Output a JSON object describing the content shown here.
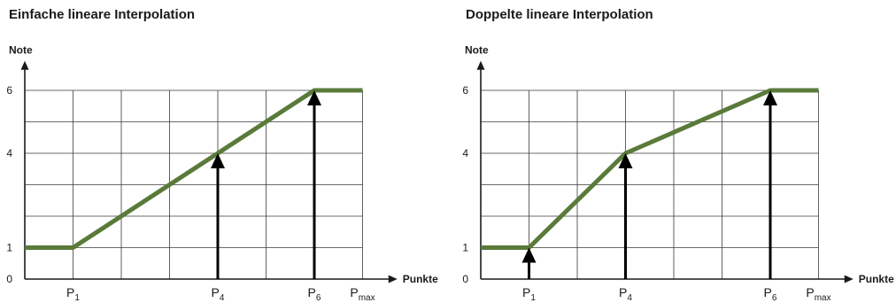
{
  "chart_data": [
    {
      "type": "line",
      "title": "Einfache lineare Interpolation",
      "ylabel": "Note",
      "xlabel": "Punkte",
      "y_ticks": [
        "0",
        "1",
        "4",
        "6"
      ],
      "x_ticks": [
        {
          "base": "P",
          "sub": "1",
          "x": 1
        },
        {
          "base": "P",
          "sub": "4",
          "x": 4
        },
        {
          "base": "P",
          "sub": "6",
          "x": 6
        },
        {
          "base": "P",
          "sub": "max",
          "x": 7
        }
      ],
      "xlim": [
        0,
        7.5
      ],
      "ylim": [
        0,
        6.6
      ],
      "grid": true,
      "grid_x_step": 1,
      "grid_y_step": 1,
      "line_color": "#5a7a3a",
      "series": [
        {
          "points": [
            [
              0,
              1
            ],
            [
              1,
              1
            ],
            [
              6,
              6
            ],
            [
              7,
              6
            ]
          ]
        }
      ],
      "arrows": [
        {
          "x": 4,
          "y": 4
        },
        {
          "x": 6,
          "y": 6
        }
      ]
    },
    {
      "type": "line",
      "title": "Doppelte lineare Interpolation",
      "ylabel": "Note",
      "xlabel": "Punkte",
      "y_ticks": [
        "0",
        "1",
        "4",
        "6"
      ],
      "x_ticks": [
        {
          "base": "P",
          "sub": "1",
          "x": 1
        },
        {
          "base": "P",
          "sub": "4",
          "x": 3
        },
        {
          "base": "P",
          "sub": "6",
          "x": 6
        },
        {
          "base": "P",
          "sub": "max",
          "x": 7
        }
      ],
      "xlim": [
        0,
        7.5
      ],
      "ylim": [
        0,
        6.6
      ],
      "grid": true,
      "grid_x_step": 1,
      "grid_y_step": 1,
      "line_color": "#5a7a3a",
      "series": [
        {
          "points": [
            [
              0,
              1
            ],
            [
              1,
              1
            ],
            [
              3,
              4
            ],
            [
              6,
              6
            ],
            [
              7,
              6
            ]
          ]
        }
      ],
      "arrows": [
        {
          "x": 1,
          "y": 1
        },
        {
          "x": 3,
          "y": 4
        },
        {
          "x": 6,
          "y": 6
        }
      ]
    }
  ]
}
